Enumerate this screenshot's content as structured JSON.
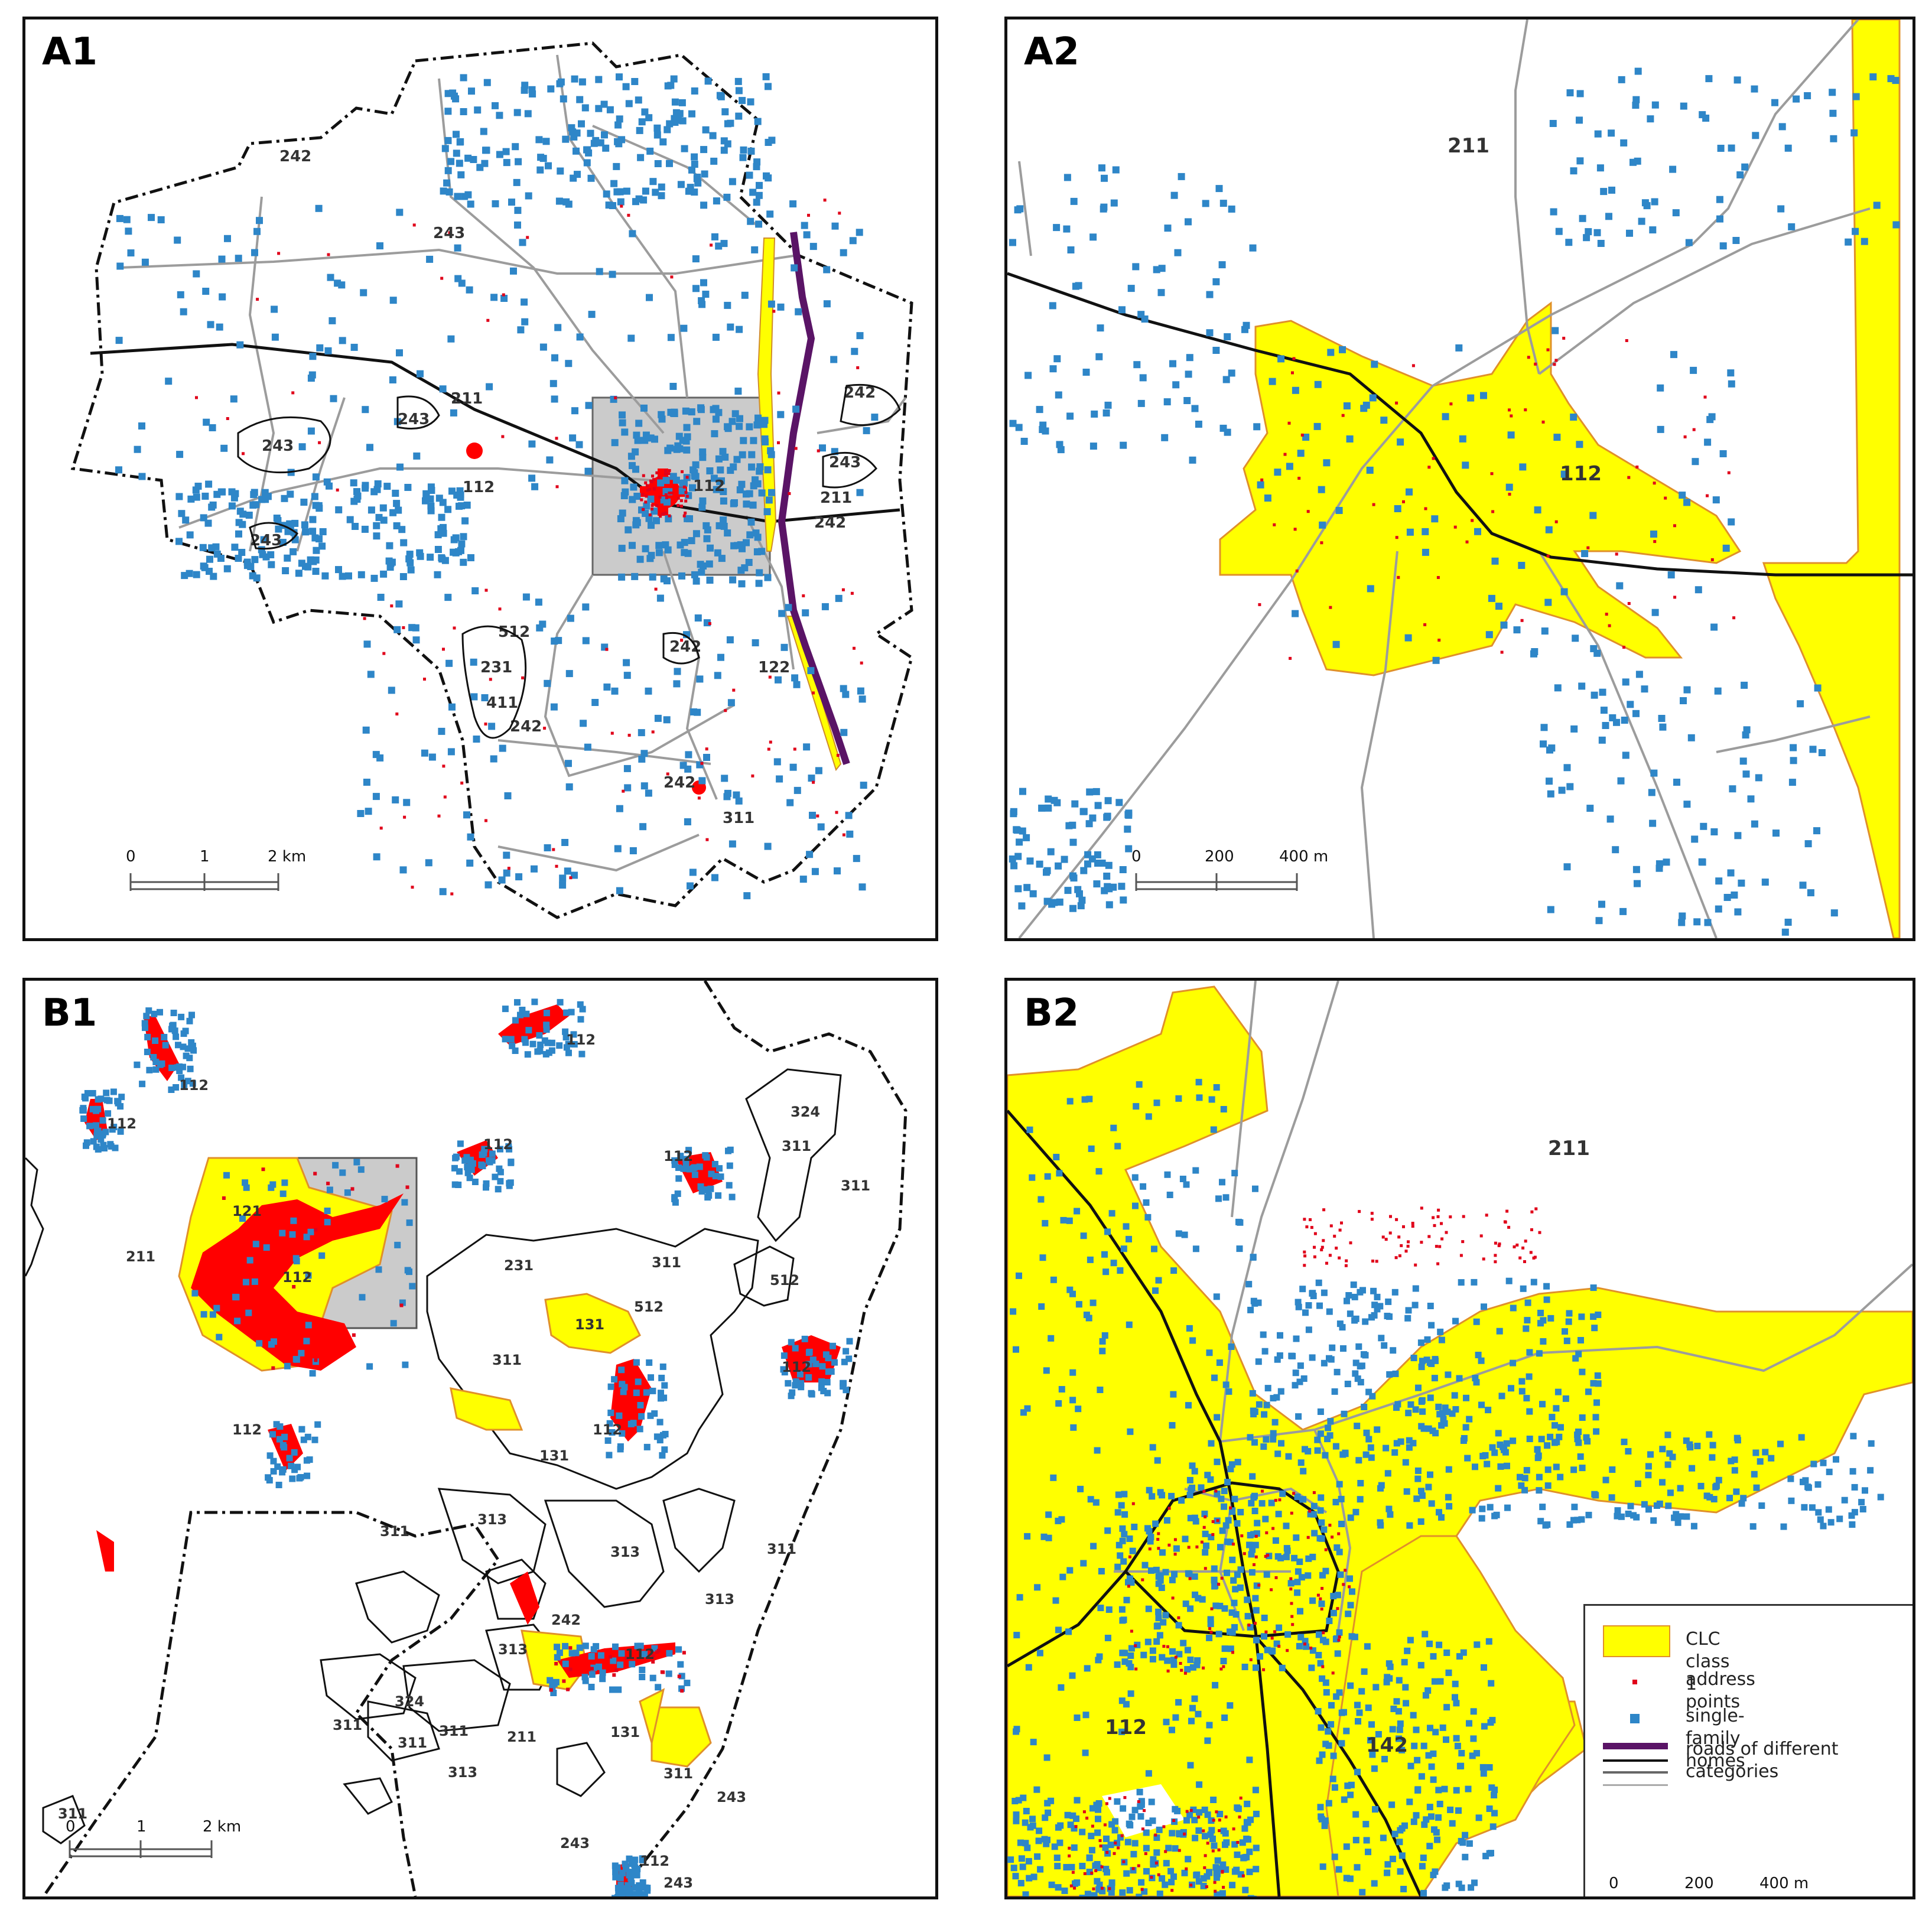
{
  "panels": {
    "a1": {
      "title": "A1",
      "labels": [
        "242",
        "243",
        "211",
        "243",
        "112",
        "243",
        "243",
        "112",
        "242",
        "243",
        "211",
        "242",
        "512",
        "242",
        "231",
        "411",
        "242",
        "122",
        "242",
        "311"
      ],
      "scale": {
        "ticks": [
          "0",
          "1",
          "2 km"
        ]
      }
    },
    "a2": {
      "title": "A2",
      "labels": [
        "211",
        "112"
      ],
      "scale": {
        "ticks": [
          "0",
          "200",
          "400 m"
        ]
      }
    },
    "b1": {
      "title": "B1",
      "labels": [
        "112",
        "112",
        "112",
        "112",
        "324",
        "112",
        "311",
        "311",
        "121",
        "211",
        "112",
        "231",
        "311",
        "512",
        "512",
        "131",
        "311",
        "112",
        "112",
        "112",
        "131",
        "311",
        "313",
        "313",
        "311",
        "313",
        "242",
        "313",
        "112",
        "324",
        "311",
        "311",
        "311",
        "211",
        "313",
        "131",
        "311",
        "243",
        "243",
        "112",
        "243",
        "311"
      ],
      "scale": {
        "ticks": [
          "0",
          "1",
          "2 km"
        ]
      }
    },
    "b2": {
      "title": "B2",
      "labels": [
        "211",
        "112",
        "142"
      ],
      "scale": {
        "ticks": [
          "0",
          "200",
          "400 m"
        ]
      }
    }
  },
  "legend": {
    "items": [
      {
        "label": "CLC class 1"
      },
      {
        "label": "address points"
      },
      {
        "label": "single-family homes"
      },
      {
        "label": "roads of different categories"
      }
    ]
  },
  "colors": {
    "clc_class_1": "#ffff00",
    "clc_outline": "#e0902a",
    "address_points": "#e0001a",
    "single_family_homes": "#2e86c8",
    "road_major": "#5a1466",
    "road_secondary": "#111111",
    "road_tertiary": "#777777",
    "road_minor": "#b4b4b4",
    "built_red": "#ff0000"
  }
}
